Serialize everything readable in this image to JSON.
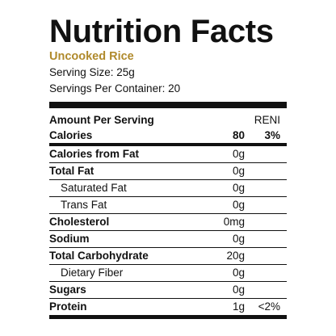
{
  "title": "Nutrition Facts",
  "product": "Uncooked Rice",
  "serving_size": "Serving Size: 25g",
  "servings_per_container": "Servings Per Container: 20",
  "header": {
    "label": "Amount Per Serving",
    "column": "RENI"
  },
  "calories": {
    "label": "Calories",
    "amount": "80",
    "dv": "3%"
  },
  "rows": [
    {
      "label": "Calories from Fat",
      "amount": "0g",
      "dv": ""
    },
    {
      "label": "Total Fat",
      "amount": "0g",
      "dv": ""
    },
    {
      "label": "Saturated Fat",
      "amount": "0g",
      "dv": ""
    },
    {
      "label": "Trans Fat",
      "amount": "0g",
      "dv": ""
    },
    {
      "label": "Cholesterol",
      "amount": "0mg",
      "dv": ""
    },
    {
      "label": "Sodium",
      "amount": "0g",
      "dv": ""
    },
    {
      "label": "Total Carbohydrate",
      "amount": "20g",
      "dv": ""
    },
    {
      "label": "Dietary Fiber",
      "amount": "0g",
      "dv": ""
    },
    {
      "label": "Sugars",
      "amount": "0g",
      "dv": ""
    },
    {
      "label": "Protein",
      "amount": "1g",
      "dv": "<2%"
    }
  ],
  "colors": {
    "product_accent": "#b08a2c",
    "rule": "#111111"
  }
}
